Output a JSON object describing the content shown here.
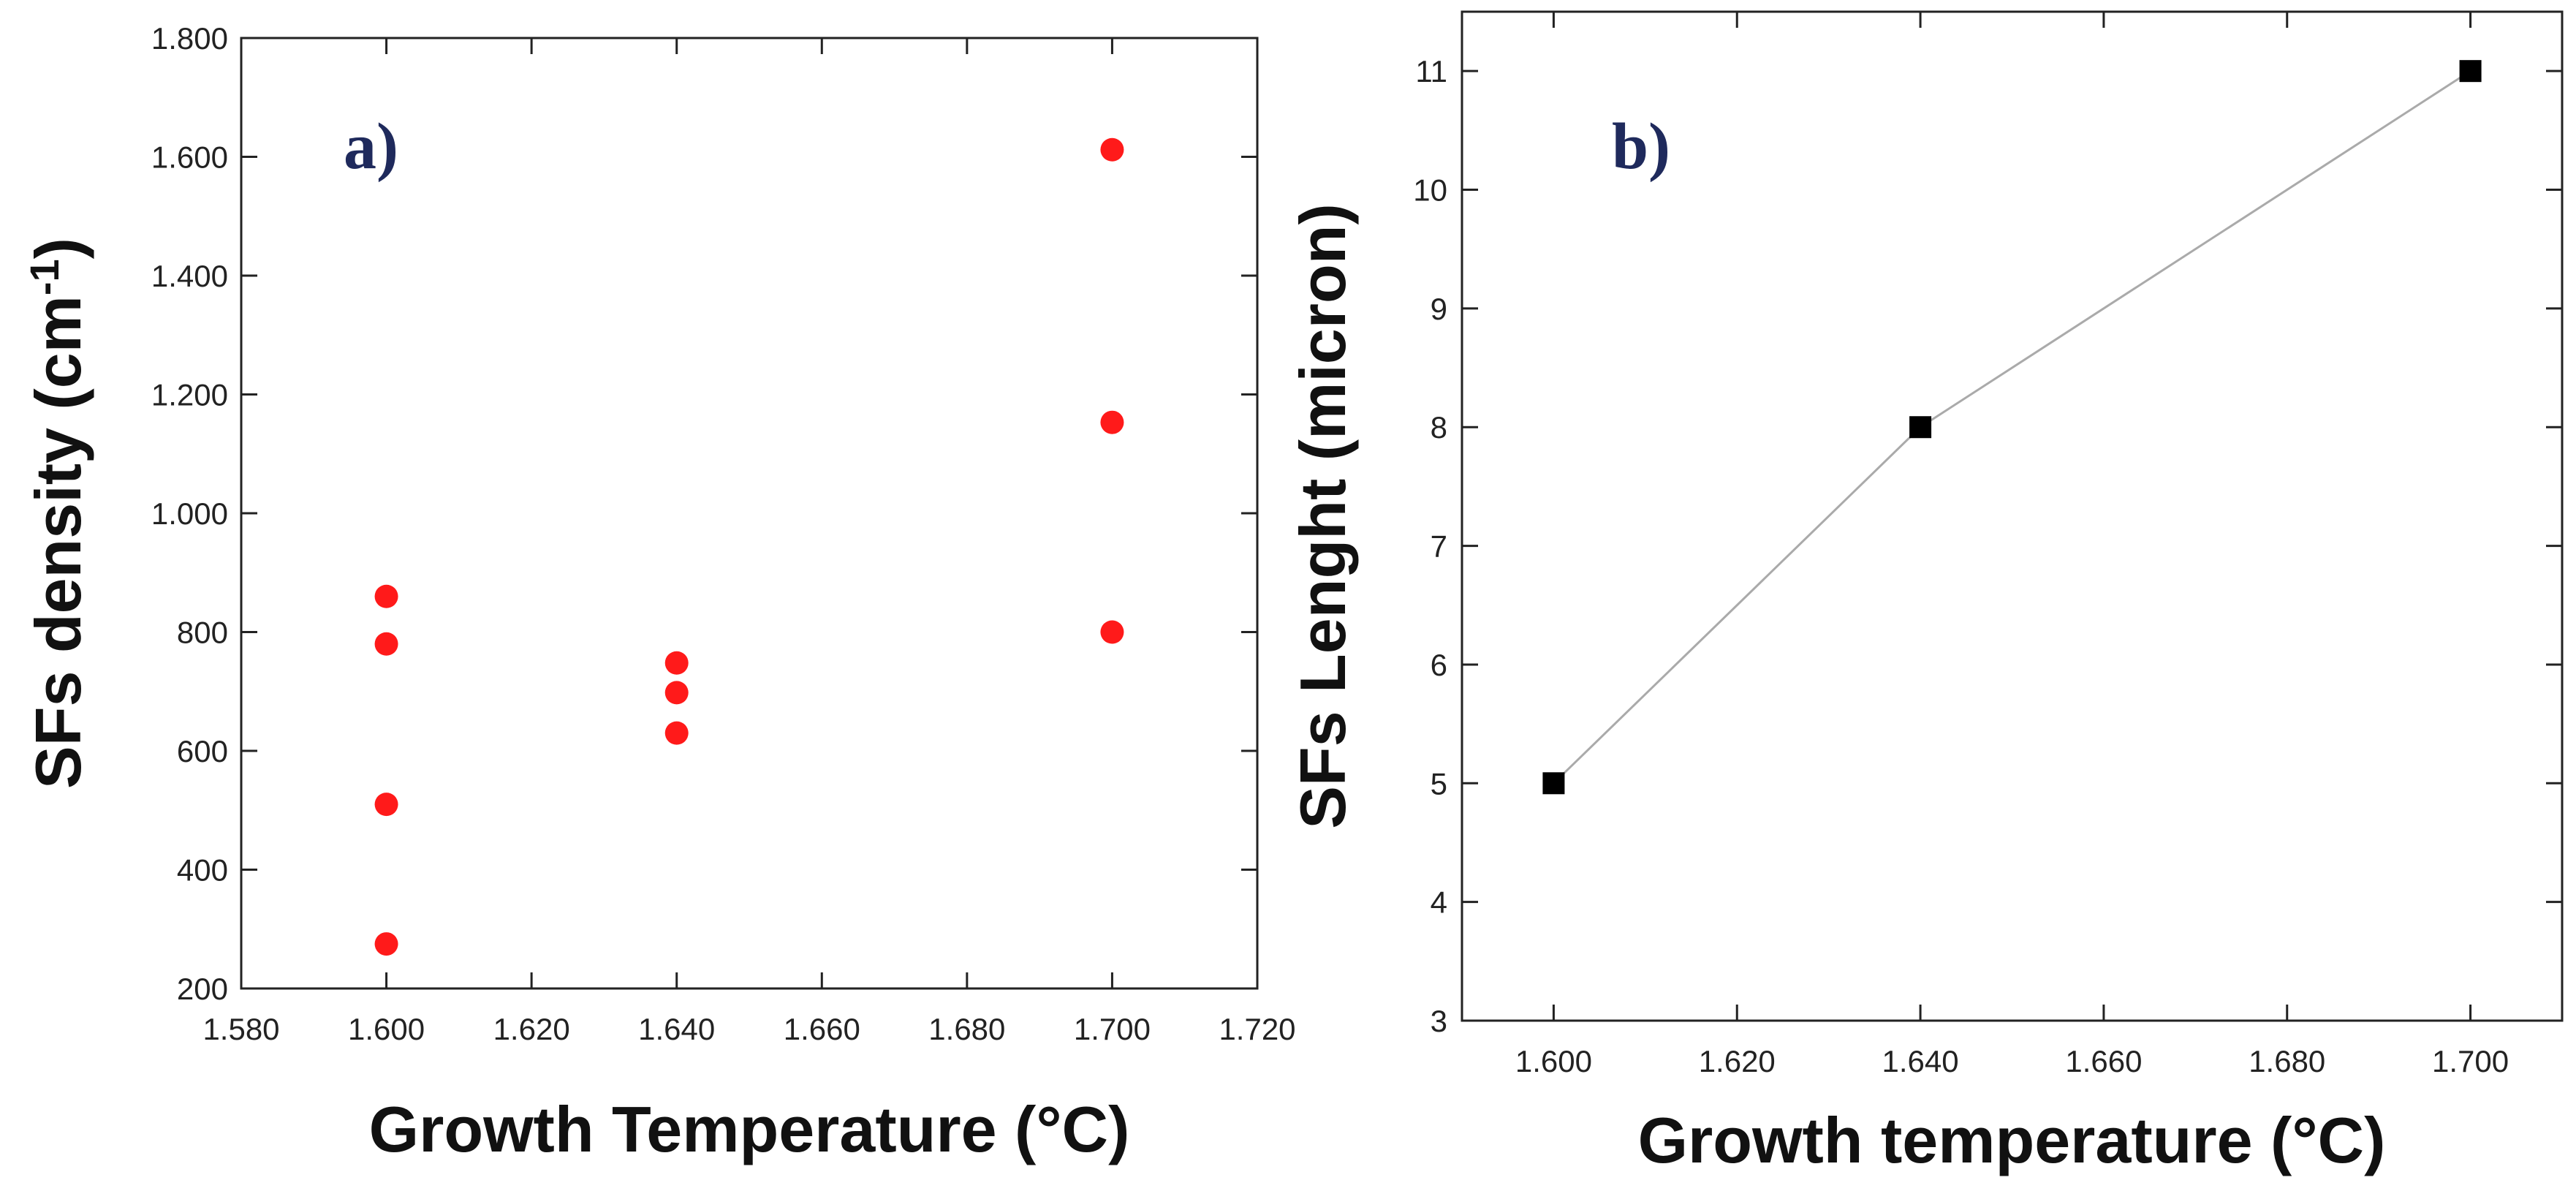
{
  "chart_data": [
    {
      "type": "scatter",
      "panel_label": "a)",
      "xlabel": "Growth Temperature (°C)",
      "ylabel_main": "SFs density (cm",
      "ylabel_sup": "-1",
      "ylabel_close": ")",
      "xlim": [
        1580,
        1720
      ],
      "ylim": [
        200,
        1800
      ],
      "xticks": [
        1580,
        1600,
        1620,
        1640,
        1660,
        1680,
        1700,
        1720
      ],
      "xtick_labels": [
        "1.580",
        "1.600",
        "1.620",
        "1.640",
        "1.660",
        "1.680",
        "1.700",
        "1.720"
      ],
      "yticks": [
        200,
        400,
        600,
        800,
        1000,
        1200,
        1400,
        1600,
        1800
      ],
      "ytick_labels": [
        "200",
        "400",
        "600",
        "800",
        "1.000",
        "1.200",
        "1.400",
        "1.600",
        "1.800"
      ],
      "marker_color": "#ff1a1a",
      "series": [
        {
          "name": "SFs density",
          "points": [
            {
              "x": 1600,
              "y": 860
            },
            {
              "x": 1600,
              "y": 780
            },
            {
              "x": 1600,
              "y": 510
            },
            {
              "x": 1600,
              "y": 275
            },
            {
              "x": 1640,
              "y": 748
            },
            {
              "x": 1640,
              "y": 698
            },
            {
              "x": 1640,
              "y": 630
            },
            {
              "x": 1700,
              "y": 1612
            },
            {
              "x": 1700,
              "y": 1153
            },
            {
              "x": 1700,
              "y": 800
            }
          ]
        }
      ]
    },
    {
      "type": "line",
      "panel_label": "b)",
      "xlabel": "Growth temperature (°C)",
      "ylabel": "SFs Lenght (micron)",
      "xlim": [
        1590,
        1710
      ],
      "ylim": [
        3,
        11.5
      ],
      "xticks": [
        1600,
        1620,
        1640,
        1660,
        1680,
        1700
      ],
      "xtick_labels": [
        "1.600",
        "1.620",
        "1.640",
        "1.660",
        "1.680",
        "1.700"
      ],
      "yticks": [
        3,
        4,
        5,
        6,
        7,
        8,
        9,
        10,
        11
      ],
      "ytick_labels": [
        "3",
        "4",
        "5",
        "6",
        "7",
        "8",
        "9",
        "10",
        "11"
      ],
      "marker_color": "#000000",
      "line_color": "#aaaaaa",
      "series": [
        {
          "name": "SFs length",
          "x": [
            1600,
            1640,
            1700
          ],
          "y": [
            5,
            8,
            11
          ]
        }
      ]
    }
  ]
}
